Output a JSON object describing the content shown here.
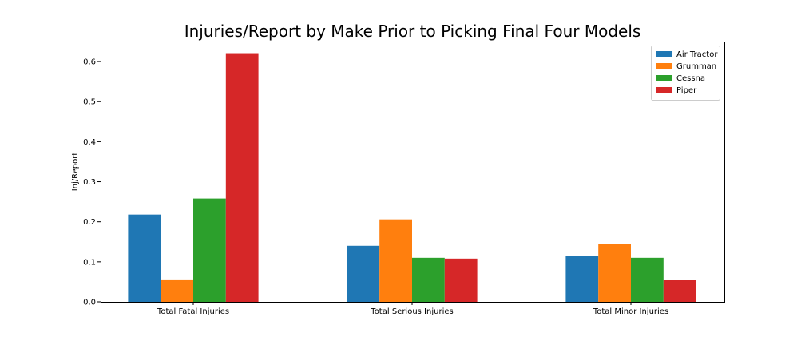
{
  "chart_data": {
    "type": "bar",
    "title": "Injuries/Report by Make Prior to Picking Final Four Models",
    "xlabel": "",
    "ylabel": "Inj/Report",
    "ylim": [
      0,
      0.65
    ],
    "yticks": [
      "0.0",
      "0.1",
      "0.2",
      "0.3",
      "0.4",
      "0.5",
      "0.6"
    ],
    "categories": [
      "Total Fatal Injuries",
      "Total Serious Injuries",
      "Total Minor Injuries"
    ],
    "series": [
      {
        "name": "Air Tractor",
        "color": "#1f77b4",
        "values": [
          0.218,
          0.14,
          0.114
        ]
      },
      {
        "name": "Grumman",
        "color": "#ff7f0e",
        "values": [
          0.056,
          0.206,
          0.144
        ]
      },
      {
        "name": "Cessna",
        "color": "#2ca02c",
        "values": [
          0.258,
          0.11,
          0.11
        ]
      },
      {
        "name": "Piper",
        "color": "#d62728",
        "values": [
          0.621,
          0.108,
          0.054
        ]
      }
    ],
    "legend_position": "top-right",
    "grid": false
  }
}
